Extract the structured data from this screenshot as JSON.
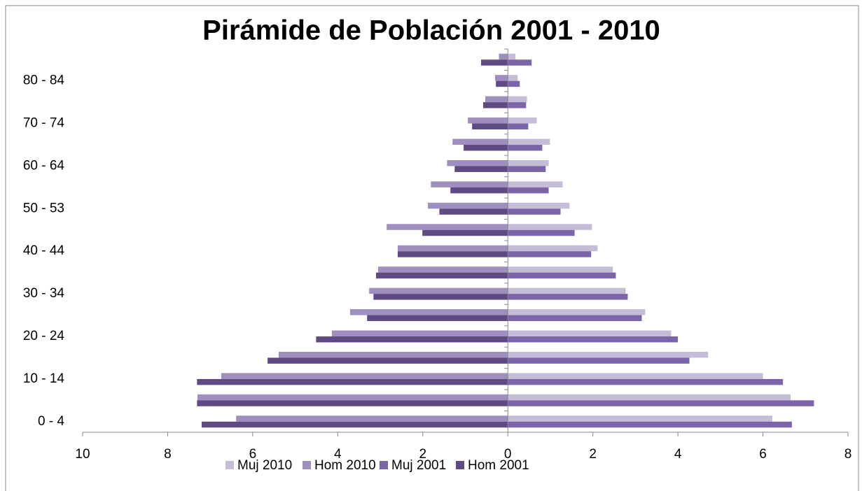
{
  "chart_data": {
    "type": "pyramid",
    "title": "Pirámide de Población 2001 - 2010",
    "categories": [
      "0 - 4",
      null,
      "10 - 14",
      null,
      "20 - 24",
      null,
      "30 - 34",
      null,
      "40 - 44",
      null,
      "50 - 53",
      null,
      "60 - 64",
      null,
      "70 - 74",
      null,
      "80 - 84",
      null
    ],
    "series": [
      {
        "name": "Muj 2010",
        "color": "#c5bcd7",
        "row": "2010",
        "values": [
          6.22,
          6.65,
          6.0,
          4.71,
          3.84,
          3.23,
          2.77,
          2.47,
          2.11,
          1.98,
          1.45,
          1.29,
          0.96,
          0.99,
          0.68,
          0.45,
          0.23,
          0.18
        ]
      },
      {
        "name": "Hom 2010",
        "color": "#9f8fc0",
        "row": "2010",
        "values": [
          -6.39,
          -7.3,
          -6.74,
          -5.39,
          -4.14,
          -3.71,
          -3.26,
          -3.05,
          -2.59,
          -2.85,
          -1.88,
          -1.81,
          -1.43,
          -1.3,
          -0.94,
          -0.53,
          -0.3,
          -0.21
        ]
      },
      {
        "name": "Muj 2001",
        "color": "#7c64a8",
        "row": "2001",
        "values": [
          6.68,
          7.2,
          6.47,
          4.27,
          4.0,
          3.15,
          2.82,
          2.54,
          1.96,
          1.57,
          1.24,
          0.96,
          0.89,
          0.81,
          0.48,
          0.43,
          0.28,
          0.56
        ]
      },
      {
        "name": "Hom 2001",
        "color": "#604a84",
        "row": "2001",
        "values": [
          -7.2,
          -7.31,
          -7.31,
          -5.65,
          -4.51,
          -3.31,
          -3.16,
          -3.1,
          -2.59,
          -2.01,
          -1.61,
          -1.35,
          -1.25,
          -1.04,
          -0.84,
          -0.58,
          -0.28,
          -0.63
        ]
      }
    ],
    "xlim": [
      -10,
      8
    ],
    "xticks": [
      {
        "value": -10,
        "label": "10"
      },
      {
        "value": -8,
        "label": "8"
      },
      {
        "value": -6,
        "label": "6"
      },
      {
        "value": -4,
        "label": "4"
      },
      {
        "value": -2,
        "label": "2"
      },
      0,
      2,
      4,
      6,
      8
    ],
    "legend": "bottom"
  }
}
